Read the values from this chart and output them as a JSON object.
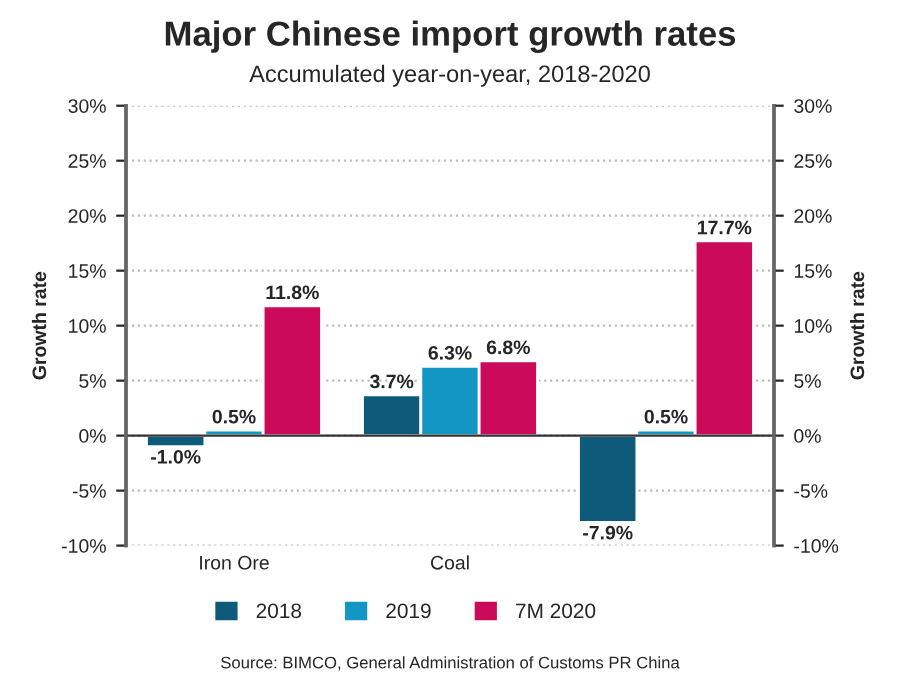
{
  "chart_data": {
    "type": "bar",
    "title": "Major Chinese import growth rates",
    "subtitle": "Accumulated year-on-year, 2018-2020",
    "ylabel": "Growth rate",
    "y2label": "Growth rate",
    "categories": [
      "Iron Ore",
      "Coal",
      null
    ],
    "series": [
      {
        "name": "2018",
        "color": "#0e5a7a",
        "values": [
          -1.0,
          3.7,
          -7.9
        ],
        "value_labels": [
          "-1.0%",
          "3.7%",
          "-7.9%"
        ]
      },
      {
        "name": "2019",
        "color": "#1496c4",
        "values": [
          0.5,
          6.3,
          0.5
        ],
        "value_labels": [
          "0.5%",
          "6.3%",
          "0.5%"
        ]
      },
      {
        "name": "7M 2020",
        "color": "#cc0a5a",
        "values": [
          11.8,
          6.8,
          17.7
        ],
        "value_labels": [
          "11.8%",
          "6.8%",
          "17.7%"
        ]
      }
    ],
    "ylim": [
      -10,
      30
    ],
    "yticks": [
      {
        "value": -10,
        "label": "-10%"
      },
      {
        "value": -5,
        "label": "-5%"
      },
      {
        "value": 0,
        "label": "0%"
      },
      {
        "value": 5,
        "label": "5%"
      },
      {
        "value": 10,
        "label": "10%"
      },
      {
        "value": 15,
        "label": "15%"
      },
      {
        "value": 20,
        "label": "20%"
      },
      {
        "value": 25,
        "label": "25%"
      },
      {
        "value": 30,
        "label": "30%"
      }
    ],
    "y2lim": [
      -10,
      30
    ],
    "y2ticks": [
      {
        "value": -10,
        "label": "-10%"
      },
      {
        "value": -5,
        "label": "-5%"
      },
      {
        "value": 0,
        "label": "0%"
      },
      {
        "value": 5,
        "label": "5%"
      },
      {
        "value": 10,
        "label": "10%"
      },
      {
        "value": 15,
        "label": "15%"
      },
      {
        "value": 20,
        "label": "20%"
      },
      {
        "value": 25,
        "label": "25%"
      },
      {
        "value": 30,
        "label": "30%"
      }
    ],
    "grid": "y",
    "legend": "bottom",
    "annotations": [
      "Source: BIMCO, General Administration of Customs PR China"
    ]
  }
}
